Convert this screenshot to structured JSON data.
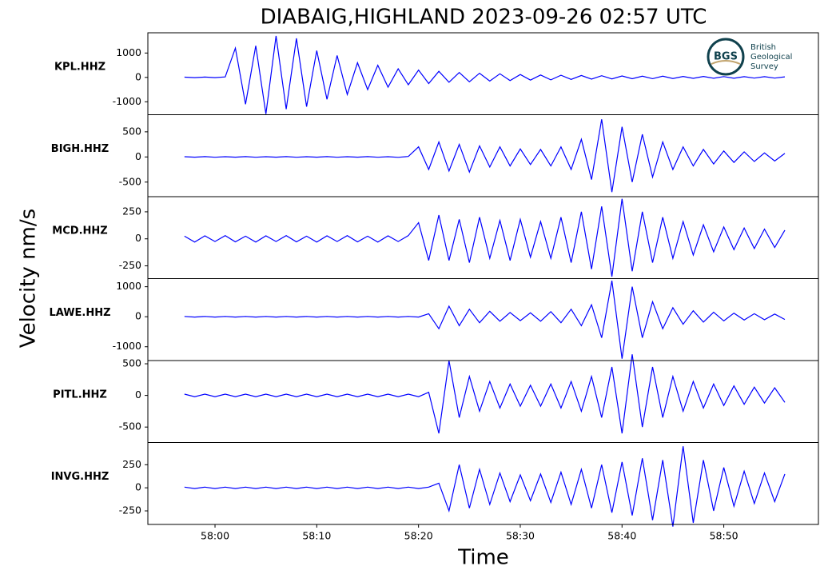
{
  "chart_data": {
    "type": "seismogram",
    "title": "DIABAIG,HIGHLAND   2023-09-26 02:57 UTC",
    "y_label": "Velocity nm/s",
    "x_label": "Time",
    "color": "#0000ff",
    "xlim": [
      -6.6,
      59.3
    ],
    "xticks": [
      {
        "value": 0,
        "label": "58:00"
      },
      {
        "value": 10,
        "label": "58:10"
      },
      {
        "value": 20,
        "label": "58:20"
      },
      {
        "value": 30,
        "label": "58:30"
      },
      {
        "value": 40,
        "label": "58:40"
      },
      {
        "value": 50,
        "label": "58:50"
      }
    ],
    "x": [
      -3,
      -2,
      -1,
      0,
      1,
      2,
      3,
      4,
      5,
      6,
      7,
      8,
      9,
      10,
      11,
      12,
      13,
      14,
      15,
      16,
      17,
      18,
      19,
      20,
      21,
      22,
      23,
      24,
      25,
      26,
      27,
      28,
      29,
      30,
      31,
      32,
      33,
      34,
      35,
      36,
      37,
      38,
      39,
      40,
      41,
      42,
      43,
      44,
      45,
      46,
      47,
      48,
      49,
      50,
      51,
      52,
      53,
      54,
      55,
      56
    ],
    "logo": {
      "abbr": "BGS",
      "lines": [
        "British",
        "Geological",
        "Survey"
      ]
    },
    "panels": [
      {
        "name": "KPL.HHZ",
        "ylim": [
          -1530,
          1830
        ],
        "yticks": [
          -1000,
          0,
          1000
        ],
        "values": [
          10,
          -10,
          15,
          -10,
          20,
          1200,
          -1100,
          1300,
          -1500,
          1700,
          -1300,
          1600,
          -1200,
          1100,
          -900,
          900,
          -700,
          600,
          -500,
          500,
          -400,
          350,
          -300,
          300,
          -250,
          250,
          -200,
          200,
          -180,
          170,
          -150,
          150,
          -130,
          120,
          -110,
          100,
          -100,
          90,
          -80,
          80,
          -70,
          70,
          -60,
          60,
          -55,
          50,
          -50,
          50,
          -45,
          40,
          -40,
          40,
          -35,
          35,
          -35,
          30,
          -30,
          30,
          -30,
          25
        ]
      },
      {
        "name": "BIGH.HHZ",
        "ylim": [
          -790,
          840
        ],
        "yticks": [
          -500,
          0,
          500
        ],
        "values": [
          5,
          -5,
          6,
          -6,
          5,
          -5,
          6,
          -6,
          5,
          -5,
          6,
          -6,
          5,
          -5,
          6,
          -6,
          5,
          -5,
          6,
          -6,
          5,
          -8,
          10,
          200,
          -250,
          300,
          -280,
          250,
          -300,
          220,
          -200,
          200,
          -180,
          160,
          -150,
          150,
          -180,
          200,
          -250,
          350,
          -450,
          750,
          -700,
          600,
          -500,
          450,
          -400,
          300,
          -250,
          200,
          -180,
          150,
          -140,
          120,
          -110,
          100,
          -90,
          80,
          -80,
          70
        ]
      },
      {
        "name": "MCD.HHZ",
        "ylim": [
          -368,
          390
        ],
        "yticks": [
          -250,
          0,
          250
        ],
        "values": [
          25,
          -30,
          28,
          -25,
          30,
          -28,
          25,
          -30,
          28,
          -25,
          30,
          -28,
          25,
          -30,
          28,
          -25,
          30,
          -28,
          25,
          -30,
          28,
          -25,
          30,
          150,
          -200,
          220,
          -200,
          180,
          -220,
          200,
          -180,
          170,
          -200,
          180,
          -170,
          160,
          -180,
          200,
          -220,
          250,
          -280,
          300,
          -350,
          370,
          -300,
          250,
          -220,
          200,
          -180,
          160,
          -150,
          130,
          -120,
          110,
          -100,
          100,
          -90,
          90,
          -80,
          80
        ]
      },
      {
        "name": "LAWE.HHZ",
        "ylim": [
          -1460,
          1270
        ],
        "yticks": [
          -1000,
          0,
          1000
        ],
        "values": [
          10,
          -10,
          10,
          -10,
          10,
          -10,
          10,
          -10,
          10,
          -10,
          10,
          -10,
          10,
          -10,
          10,
          -10,
          10,
          -10,
          10,
          -10,
          10,
          -10,
          10,
          -10,
          100,
          -400,
          350,
          -300,
          250,
          -200,
          180,
          -150,
          140,
          -130,
          130,
          -150,
          170,
          -200,
          250,
          -300,
          400,
          -700,
          1200,
          -1400,
          1000,
          -700,
          500,
          -400,
          300,
          -250,
          200,
          -180,
          150,
          -140,
          120,
          -110,
          100,
          -100,
          90,
          -90
        ]
      },
      {
        "name": "PITL.HHZ",
        "ylim": [
          -744,
          551
        ],
        "yticks": [
          -500,
          0,
          500
        ],
        "values": [
          20,
          -20,
          20,
          -20,
          20,
          -20,
          20,
          -20,
          20,
          -20,
          20,
          -20,
          20,
          -20,
          20,
          -20,
          20,
          -20,
          20,
          -20,
          20,
          -20,
          20,
          -20,
          50,
          -600,
          550,
          -350,
          300,
          -250,
          220,
          -200,
          180,
          -170,
          160,
          -170,
          180,
          -200,
          220,
          -250,
          300,
          -350,
          450,
          -600,
          650,
          -500,
          450,
          -350,
          300,
          -250,
          220,
          -200,
          180,
          -160,
          150,
          -140,
          130,
          -120,
          120,
          -110
        ]
      },
      {
        "name": "INVG.HHZ",
        "ylim": [
          -397,
          491
        ],
        "yticks": [
          -250,
          0,
          250
        ],
        "values": [
          8,
          -8,
          8,
          -8,
          8,
          -8,
          8,
          -8,
          8,
          -8,
          8,
          -8,
          8,
          -8,
          8,
          -8,
          8,
          -8,
          8,
          -8,
          8,
          -8,
          8,
          -8,
          8,
          50,
          -250,
          250,
          -220,
          200,
          -180,
          160,
          -150,
          140,
          -140,
          150,
          -160,
          170,
          -180,
          200,
          -220,
          250,
          -270,
          280,
          -300,
          320,
          -350,
          300,
          -420,
          450,
          -380,
          300,
          -250,
          220,
          -200,
          180,
          -170,
          160,
          -150,
          150
        ]
      }
    ]
  }
}
